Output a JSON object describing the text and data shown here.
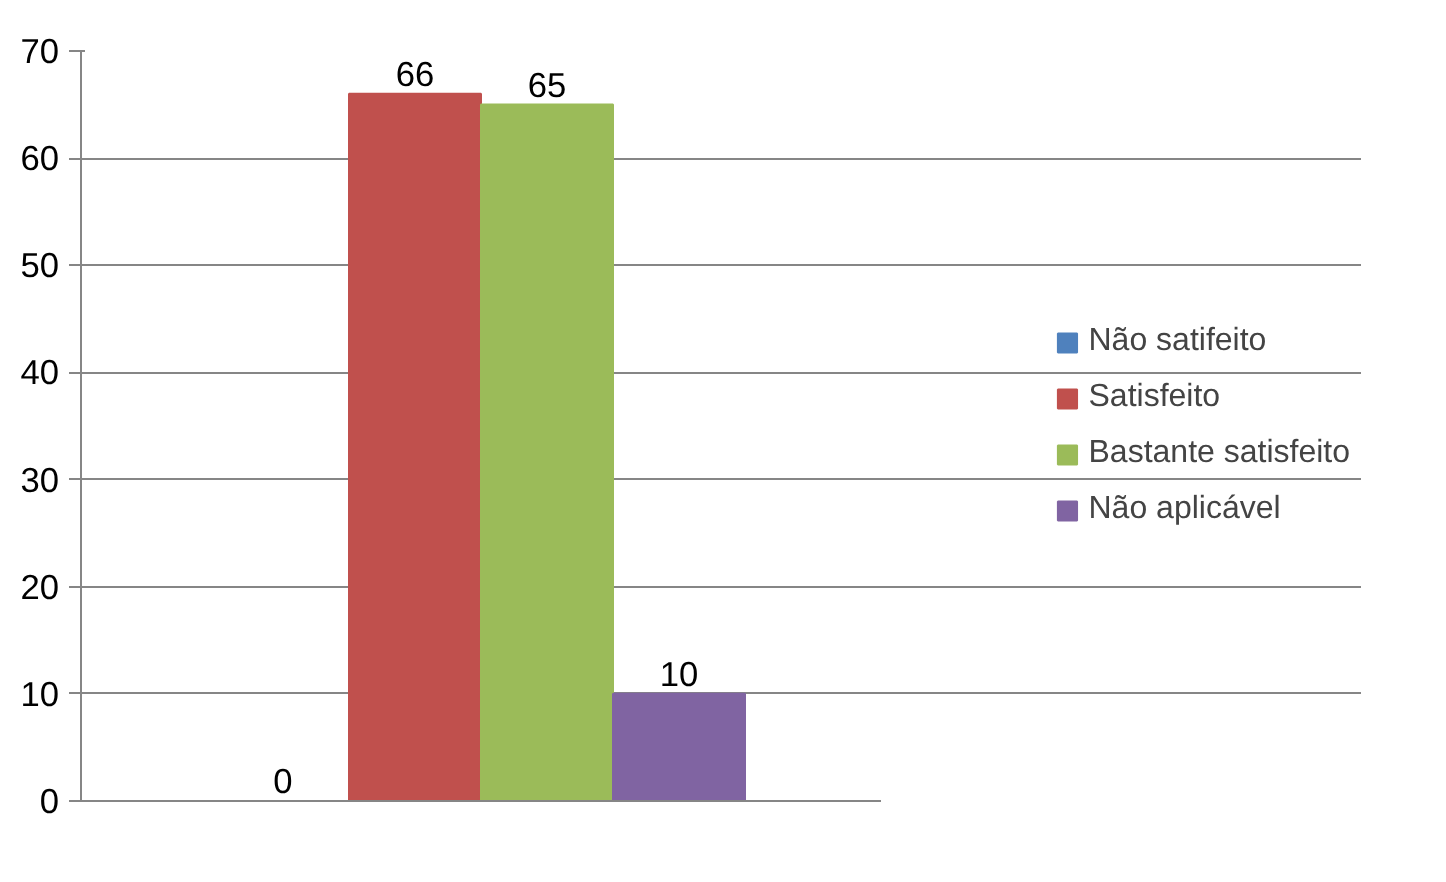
{
  "chart_data": {
    "type": "bar",
    "categories": [
      null
    ],
    "series": [
      {
        "name": "Não satifeito",
        "color": "#4f81bd",
        "values": [
          0
        ]
      },
      {
        "name": "Satisfeito",
        "color": "#c0504d",
        "values": [
          66
        ]
      },
      {
        "name": "Bastante satisfeito",
        "color": "#9bbb59",
        "values": [
          65
        ]
      },
      {
        "name": "Não aplicável",
        "color": "#8064a2",
        "values": [
          10
        ]
      }
    ],
    "ylim": [
      0,
      70
    ],
    "yticks": [
      0,
      10,
      20,
      30,
      40,
      50,
      60,
      70
    ],
    "grid": "y",
    "legend": "right",
    "data_labels": true
  }
}
